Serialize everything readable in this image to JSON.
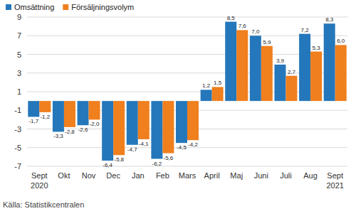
{
  "chart_data": {
    "type": "bar",
    "categories": [
      "Sept\n2020",
      "Okt",
      "Nov",
      "Dec",
      "Jan",
      "Feb",
      "Mars",
      "April",
      "Maj",
      "Juni",
      "Juli",
      "Aug",
      "Sept\n2021"
    ],
    "series": [
      {
        "name": "Omsättning",
        "color": "#2577bb",
        "values": [
          -1.7,
          -3.3,
          -2.6,
          -6.4,
          -4.7,
          -6.2,
          -4.5,
          1.2,
          8.5,
          7.0,
          3.9,
          7.2,
          8.3
        ],
        "value_labels": [
          "-1,7",
          "-3,3",
          "-2,6",
          "-6,4",
          "-4,7",
          "-6,2",
          "-4,5",
          "1,2",
          "8,5",
          "7,0",
          "3,9",
          "7,2",
          "8,3"
        ]
      },
      {
        "name": "Försäljningsvolym",
        "color": "#f07f1e",
        "values": [
          -1.2,
          -2.8,
          -2.0,
          -5.8,
          -4.1,
          -5.6,
          -4.2,
          1.5,
          7.6,
          5.9,
          2.7,
          5.3,
          6.0
        ],
        "value_labels": [
          "-1,2",
          "-2,8",
          "-2,0",
          "-5,8",
          "-4,1",
          "-5,6",
          "-4,2",
          "1,5",
          "7,6",
          "5,9",
          "2,7",
          "5,3",
          "6,0"
        ]
      }
    ],
    "ylim": [
      -7,
      9
    ],
    "yticks": [
      -7,
      -5,
      -3,
      -1,
      1,
      3,
      5,
      7,
      9
    ],
    "grid": true,
    "legend": "top-left",
    "data_labels": true,
    "source": "Källa: Statistikcentralen"
  }
}
